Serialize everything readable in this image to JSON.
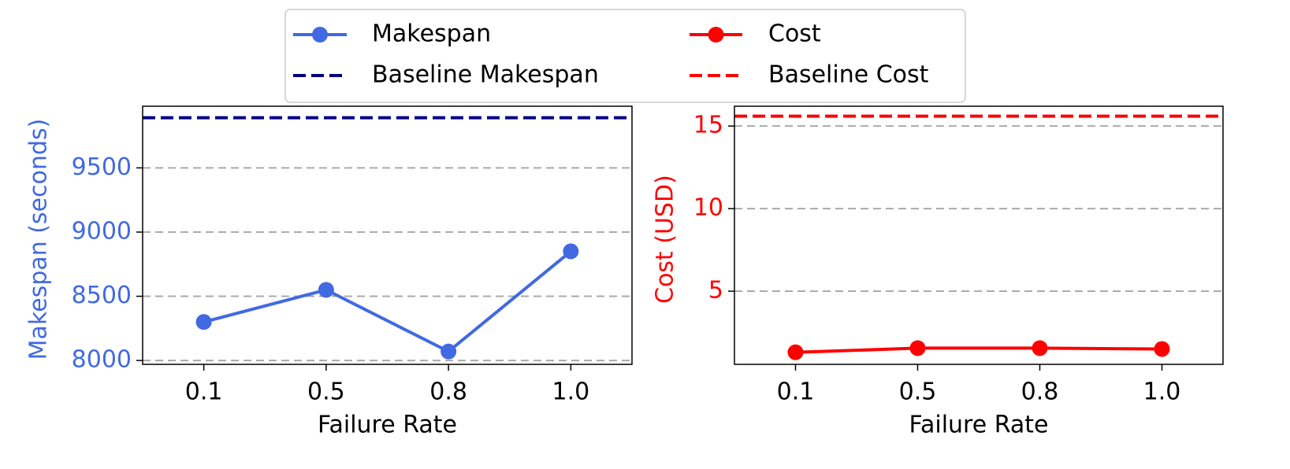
{
  "chart_data": [
    {
      "type": "line",
      "xlabel": "Failure Rate",
      "ylabel": "Makespan (seconds)",
      "label_color": "#4169e1",
      "categories": [
        "0.1",
        "0.5",
        "0.8",
        "1.0"
      ],
      "series": [
        {
          "name": "Makespan",
          "color": "#4169e1",
          "values": [
            8300,
            8550,
            8070,
            8850
          ]
        }
      ],
      "baseline": {
        "name": "Baseline Makespan",
        "color": "#000080",
        "value": 9890
      },
      "ylim": [
        7970,
        9980
      ],
      "yticks": [
        8000,
        8500,
        9000,
        9500
      ],
      "grid": true
    },
    {
      "type": "line",
      "xlabel": "Failure Rate",
      "ylabel": "Cost (USD)",
      "label_color": "#ff0000",
      "categories": [
        "0.1",
        "0.5",
        "0.8",
        "1.0"
      ],
      "series": [
        {
          "name": "Cost",
          "color": "#ff0000",
          "values": [
            1.3,
            1.55,
            1.55,
            1.5
          ]
        }
      ],
      "baseline": {
        "name": "Baseline Cost",
        "color": "#ff0000",
        "value": 15.6
      },
      "ylim": [
        0.57,
        16.2
      ],
      "yticks": [
        5,
        10,
        15
      ],
      "grid": true
    }
  ]
}
